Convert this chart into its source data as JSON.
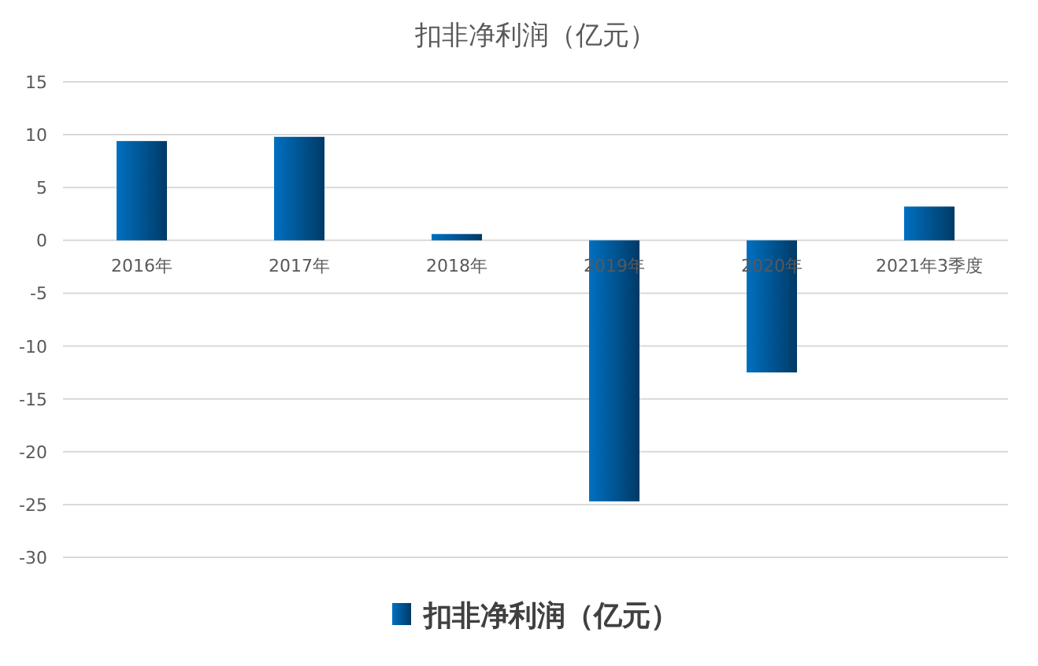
{
  "chart_data": {
    "type": "bar",
    "title": "扣非净利润（亿元）",
    "categories": [
      "2016年",
      "2017年",
      "2018年",
      "2019年",
      "2020年",
      "2021年3季度"
    ],
    "series": [
      {
        "name": "扣非净利润（亿元）",
        "color": "#0070c0",
        "values": [
          9.4,
          9.8,
          0.6,
          -24.7,
          -12.5,
          3.2
        ]
      }
    ],
    "ylim": [
      -30,
      15
    ],
    "yticks": [
      -30,
      -25,
      -20,
      -15,
      -10,
      -5,
      0,
      5,
      10,
      15
    ],
    "grid": "y",
    "legend": "bottom"
  }
}
